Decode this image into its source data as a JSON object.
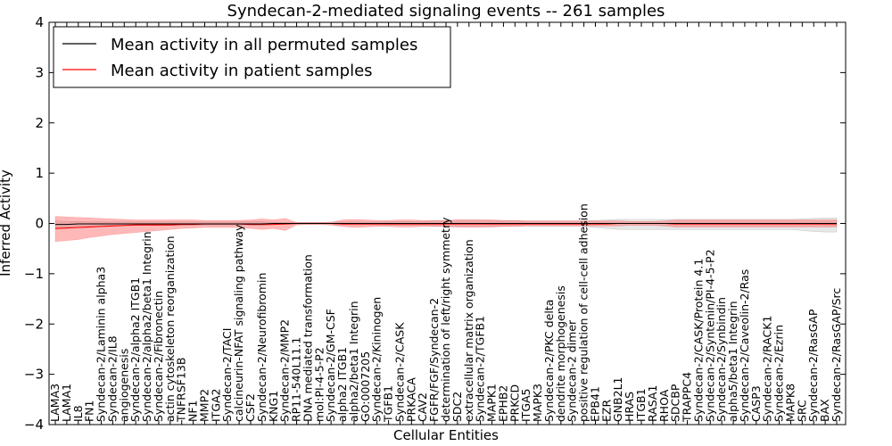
{
  "chart_data": {
    "type": "line",
    "title": "Syndecan-2-mediated signaling events -- 261 samples",
    "xlabel": "Cellular Entities",
    "ylabel": "Inferred Activity",
    "ylim": [
      -4,
      4
    ],
    "yticks": [
      -4,
      -3,
      -2,
      -1,
      0,
      1,
      2,
      3,
      4
    ],
    "grid": false,
    "legend": {
      "placement": "top-left",
      "entries": [
        {
          "label": "Mean activity in all permuted samples",
          "color": "#000000"
        },
        {
          "label": "Mean activity in patient samples",
          "color": "#ff0000"
        }
      ]
    },
    "categories": [
      "LAMA3",
      "LAMA1",
      "IL8",
      "FN1",
      "Syndecan-2/Laminin alpha3",
      "Syndecan-2/IL8",
      "angiogenesis",
      "Syndecan-2/alpha2 ITGB1",
      "Syndecan-2/alpha2/beta1 Integrin",
      "Syndecan-2/Fibronectin",
      "actin cytoskeleton reorganization",
      "TNFRSF13B",
      "NF1",
      "MMP2",
      "ITGA2",
      "Syndecan-2/TACI",
      "calcineurin-NFAT signaling pathway",
      "CSF2",
      "Syndecan-2/Neurofibromin",
      "KNG1",
      "Syndecan-2/MMP2",
      "RP11-540L11.1",
      "DNA mediated transformation",
      "mol:PI-4-5-P2",
      "Syndecan-2/GM-CSF",
      "alpha2 ITGB1",
      "alpha2/beta1 Integrin",
      "GO:0007205",
      "Syndecan-2/Kininogen",
      "TGFB1",
      "Syndecan-2/CASK",
      "PRKACA",
      "CAV2",
      "FGFR/FGF/Syndecan-2",
      "determination of left/right symmetry",
      "SDC2",
      "extracellular matrix organization",
      "Syndecan-2/TGFB1",
      "MAPK1",
      "EPHB2",
      "PRKCD",
      "ITGA5",
      "MAPK3",
      "Syndecan-2/PKC delta",
      "dendrite morphogenesis",
      "Syndecan-2 dimer",
      "positive regulation of cell-cell adhesion",
      "EPB41",
      "EZR",
      "GNB2L1",
      "HRAS",
      "ITGB1",
      "RASA1",
      "RHOA",
      "SDCBP",
      "TRAPPC4",
      "Syndecan-2/CASK/Protein 4.1",
      "Syndecan-2/Syntenin/PI-4-5-P2",
      "Syndecan-2/Synbindin",
      "alpha5/beta1 Integrin",
      "Syndecan-2/Caveolin-2/Ras",
      "CASP3",
      "Syndecan-2/RACK1",
      "Syndecan-2/Ezrin",
      "MAPK8",
      "SRC",
      "Syndecan-2/RasGAP",
      "BAX",
      "Syndecan-2/RasGAP/Src"
    ],
    "series": [
      {
        "name": "Mean activity in all permuted samples",
        "color": "#000000",
        "values": [
          -0.02,
          -0.02,
          -0.01,
          -0.01,
          -0.01,
          -0.01,
          -0.01,
          -0.01,
          -0.01,
          -0.01,
          -0.01,
          -0.01,
          -0.01,
          -0.01,
          -0.01,
          -0.01,
          -0.01,
          -0.01,
          -0.01,
          0.0,
          0.0,
          0.0,
          0.0,
          0.0,
          0.0,
          0.0,
          0.0,
          0.0,
          0.0,
          0.0,
          0.0,
          0.0,
          0.0,
          0.0,
          0.0,
          0.0,
          0.0,
          0.0,
          0.0,
          0.0,
          0.0,
          0.0,
          0.0,
          0.0,
          0.0,
          0.0,
          0.0,
          0.0,
          0.0,
          0.0,
          0.0,
          0.0,
          0.0,
          0.0,
          0.0,
          0.0,
          0.0,
          0.0,
          0.0,
          0.0,
          0.0,
          0.0,
          0.0,
          0.0,
          0.0,
          0.0,
          0.0,
          0.0,
          0.0
        ],
        "band_low": [
          -0.08,
          -0.07,
          -0.06,
          -0.05,
          -0.04,
          -0.04,
          -0.04,
          -0.04,
          -0.04,
          -0.04,
          -0.04,
          -0.04,
          -0.04,
          -0.03,
          -0.03,
          -0.03,
          -0.03,
          -0.04,
          -0.04,
          -0.02,
          -0.02,
          -0.02,
          -0.02,
          -0.02,
          -0.03,
          -0.03,
          -0.03,
          -0.03,
          -0.03,
          -0.04,
          -0.04,
          -0.04,
          -0.04,
          -0.05,
          -0.06,
          -0.07,
          -0.07,
          -0.07,
          -0.06,
          -0.06,
          -0.05,
          -0.05,
          -0.05,
          -0.05,
          -0.05,
          -0.05,
          -0.05,
          -0.08,
          -0.1,
          -0.12,
          -0.12,
          -0.12,
          -0.12,
          -0.12,
          -0.12,
          -0.12,
          -0.12,
          -0.12,
          -0.12,
          -0.12,
          -0.12,
          -0.12,
          -0.12,
          -0.12,
          -0.12,
          -0.14,
          -0.16,
          -0.17,
          -0.17
        ],
        "band_high": [
          0.05,
          0.04,
          0.04,
          0.03,
          0.03,
          0.03,
          0.03,
          0.03,
          0.03,
          0.03,
          0.03,
          0.03,
          0.03,
          0.03,
          0.03,
          0.03,
          0.03,
          0.04,
          0.04,
          0.02,
          0.02,
          0.02,
          0.02,
          0.02,
          0.03,
          0.03,
          0.03,
          0.03,
          0.03,
          0.04,
          0.04,
          0.04,
          0.04,
          0.05,
          0.06,
          0.07,
          0.07,
          0.07,
          0.06,
          0.06,
          0.05,
          0.05,
          0.05,
          0.05,
          0.05,
          0.05,
          0.05,
          0.06,
          0.07,
          0.08,
          0.08,
          0.08,
          0.08,
          0.08,
          0.08,
          0.08,
          0.08,
          0.08,
          0.08,
          0.08,
          0.08,
          0.08,
          0.08,
          0.08,
          0.08,
          0.09,
          0.1,
          0.11,
          0.11
        ]
      },
      {
        "name": "Mean activity in patient samples",
        "color": "#ff0000",
        "values": [
          -0.1,
          -0.09,
          -0.08,
          -0.07,
          -0.06,
          -0.05,
          -0.04,
          -0.03,
          -0.03,
          -0.03,
          -0.03,
          -0.02,
          -0.02,
          -0.01,
          -0.01,
          -0.01,
          -0.01,
          -0.02,
          -0.02,
          -0.02,
          -0.01,
          0.0,
          0.0,
          0.0,
          0.0,
          -0.01,
          -0.01,
          -0.01,
          -0.01,
          -0.01,
          -0.01,
          -0.01,
          -0.01,
          -0.01,
          -0.01,
          -0.01,
          -0.01,
          -0.01,
          -0.01,
          -0.01,
          -0.01,
          -0.01,
          -0.01,
          -0.01,
          -0.01,
          -0.01,
          -0.01,
          -0.01,
          -0.01,
          0.0,
          0.0,
          0.0,
          0.0,
          0.0,
          -0.01,
          -0.01,
          -0.01,
          -0.01,
          -0.01,
          -0.01,
          -0.01,
          -0.01,
          -0.01,
          -0.01,
          -0.01,
          -0.01,
          -0.01,
          -0.01,
          -0.01
        ],
        "band_low": [
          -0.36,
          -0.34,
          -0.32,
          -0.28,
          -0.25,
          -0.22,
          -0.2,
          -0.18,
          -0.16,
          -0.14,
          -0.12,
          -0.1,
          -0.09,
          -0.08,
          -0.08,
          -0.08,
          -0.08,
          -0.1,
          -0.12,
          -0.1,
          -0.14,
          -0.03,
          -0.02,
          -0.02,
          -0.03,
          -0.06,
          -0.08,
          -0.07,
          -0.06,
          -0.06,
          -0.07,
          -0.07,
          -0.06,
          -0.06,
          -0.06,
          -0.07,
          -0.07,
          -0.07,
          -0.07,
          -0.06,
          -0.06,
          -0.05,
          -0.05,
          -0.05,
          -0.05,
          -0.05,
          -0.05,
          -0.05,
          -0.05,
          -0.05,
          -0.04,
          -0.04,
          -0.04,
          -0.05,
          -0.07,
          -0.07,
          -0.07,
          -0.07,
          -0.07,
          -0.07,
          -0.07,
          -0.07,
          -0.07,
          -0.07,
          -0.07,
          -0.07,
          -0.07,
          -0.07,
          -0.07
        ],
        "band_high": [
          0.14,
          0.13,
          0.12,
          0.11,
          0.1,
          0.09,
          0.08,
          0.07,
          0.07,
          0.07,
          0.07,
          0.07,
          0.07,
          0.06,
          0.06,
          0.06,
          0.06,
          0.07,
          0.09,
          0.07,
          0.1,
          0.02,
          0.02,
          0.02,
          0.02,
          0.07,
          0.08,
          0.07,
          0.06,
          0.06,
          0.07,
          0.07,
          0.06,
          0.06,
          0.06,
          0.07,
          0.07,
          0.07,
          0.07,
          0.06,
          0.06,
          0.05,
          0.05,
          0.05,
          0.05,
          0.05,
          0.05,
          0.05,
          0.05,
          0.05,
          0.04,
          0.04,
          0.04,
          0.05,
          0.07,
          0.07,
          0.07,
          0.07,
          0.07,
          0.07,
          0.07,
          0.07,
          0.07,
          0.07,
          0.07,
          0.07,
          0.07,
          0.07,
          0.07
        ]
      }
    ]
  }
}
